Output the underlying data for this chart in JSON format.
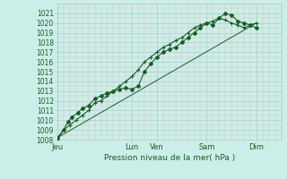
{
  "xlabel": "Pression niveau de la mer( hPa )",
  "ylim": [
    1008,
    1022
  ],
  "yticks": [
    1008,
    1009,
    1010,
    1011,
    1012,
    1013,
    1014,
    1015,
    1016,
    1017,
    1018,
    1019,
    1020,
    1021
  ],
  "bg_color": "#cceee8",
  "major_grid_color": "#aacccc",
  "minor_grid_color": "#ddbbbb",
  "line_color": "#1a5c28",
  "day_labels": [
    "Jeu",
    "Lun",
    "Ven",
    "Sam",
    "Dim"
  ],
  "day_positions": [
    0,
    36,
    48,
    72,
    96
  ],
  "xmin": 0,
  "xmax": 108,
  "series1_x": [
    0,
    3,
    5,
    7,
    10,
    12,
    15,
    18,
    21,
    24,
    27,
    30,
    33,
    36,
    39,
    42,
    45,
    48,
    51,
    54,
    57,
    60,
    63,
    66,
    69,
    72,
    75,
    78,
    81,
    84,
    87,
    90,
    93,
    96
  ],
  "series1_y": [
    1008.2,
    1009.0,
    1009.8,
    1010.3,
    1010.8,
    1011.2,
    1011.5,
    1012.2,
    1012.5,
    1012.8,
    1013.0,
    1013.2,
    1013.3,
    1013.2,
    1013.5,
    1015.0,
    1015.8,
    1016.5,
    1017.0,
    1017.3,
    1017.5,
    1018.0,
    1018.5,
    1019.0,
    1019.5,
    1020.0,
    1019.8,
    1020.5,
    1021.0,
    1020.8,
    1020.2,
    1020.0,
    1019.8,
    1019.5
  ],
  "series2_x": [
    0,
    3,
    6,
    9,
    12,
    15,
    18,
    21,
    24,
    27,
    30,
    33,
    36,
    39,
    42,
    45,
    48,
    51,
    54,
    57,
    60,
    63,
    66,
    69,
    72,
    75,
    78,
    81,
    84,
    87,
    90,
    93,
    96
  ],
  "series2_y": [
    1008.0,
    1009.0,
    1009.5,
    1010.0,
    1010.5,
    1011.0,
    1011.8,
    1012.0,
    1012.5,
    1013.0,
    1013.5,
    1014.0,
    1014.5,
    1015.2,
    1016.0,
    1016.5,
    1017.0,
    1017.5,
    1017.8,
    1018.2,
    1018.5,
    1019.0,
    1019.5,
    1019.8,
    1020.0,
    1020.2,
    1020.5,
    1020.3,
    1020.0,
    1019.8,
    1019.5,
    1019.8,
    1020.0
  ],
  "trend_x": [
    0,
    96
  ],
  "trend_y": [
    1008.2,
    1020.0
  ]
}
